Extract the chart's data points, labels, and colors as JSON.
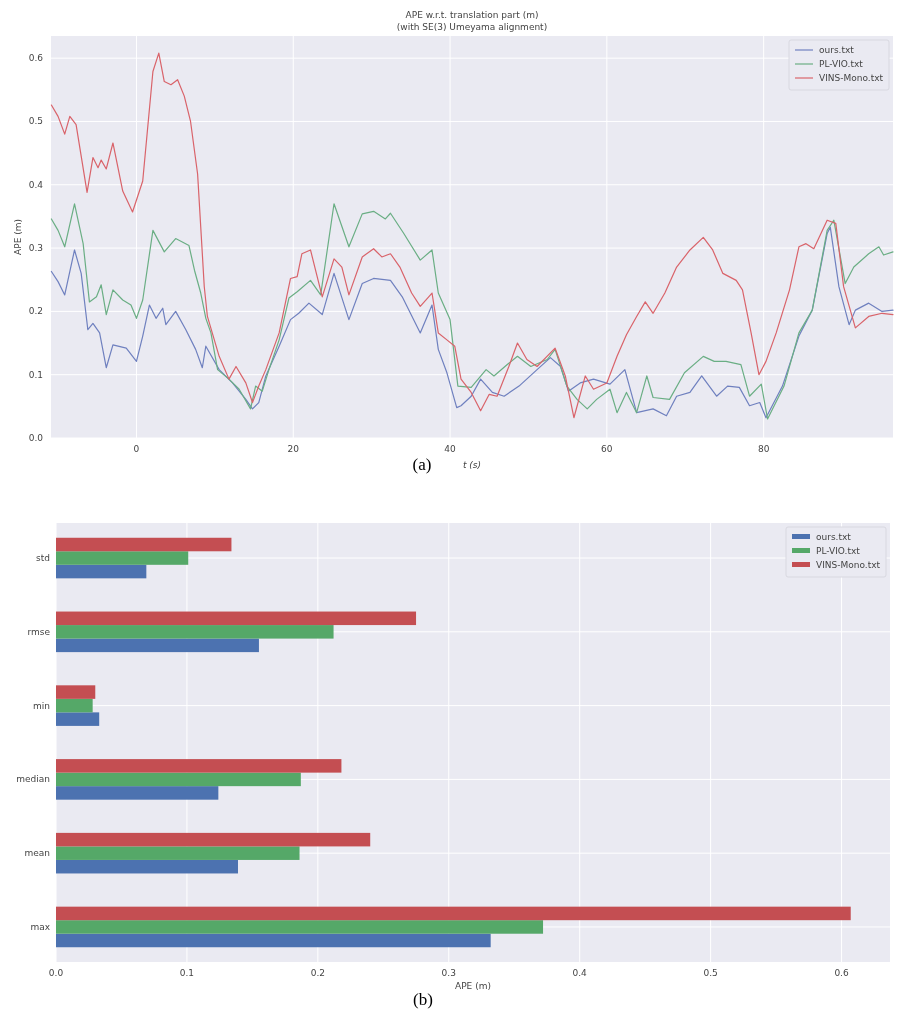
{
  "chart_data": [
    {
      "type": "line",
      "title": "APE w.r.t. translation part (m)",
      "subtitle": "(with SE(3) Umeyama alignment)",
      "xlabel": "t (s)",
      "ylabel": "APE (m)",
      "xlim": [
        -10.9,
        96.5
      ],
      "ylim": [
        0,
        0.635
      ],
      "xticks": [
        0,
        20,
        40,
        60,
        80
      ],
      "yticks": [
        {
          "value": 0,
          "label": "0.0"
        },
        0.1,
        0.2,
        0.3,
        0.4,
        0.5,
        0.6
      ],
      "grid": true,
      "legend": "top right",
      "annotations": [
        "(a)"
      ],
      "series": [
        {
          "name": "ours.txt",
          "color": "#6f80bf",
          "x": [
            -10.85,
            -10,
            -9.15,
            -7.9,
            -7.05,
            -6.2,
            -5.55,
            -4.7,
            -3.85,
            -3,
            -1.3,
            0,
            0.8,
            1.65,
            2.5,
            3.35,
            3.75,
            5,
            6.3,
            7.55,
            8.4,
            8.85,
            10.55,
            12.25,
            13.95,
            14.8,
            15.6,
            16.5,
            18.2,
            19.65,
            20.7,
            22,
            23.7,
            25.2,
            27.1,
            28.8,
            30.25,
            32.4,
            33.9,
            36.2,
            37.7,
            38.5,
            39.6,
            40.85,
            41.4,
            42.7,
            43.9,
            45.4,
            46.9,
            48.8,
            51.1,
            52.8,
            54.1,
            55.1,
            56.6,
            58.3,
            60.4,
            62.3,
            63.8,
            65.9,
            67.6,
            68.9,
            70.6,
            72.1,
            74,
            75.4,
            76.9,
            78.2,
            79.5,
            80.3,
            82.4,
            84.5,
            86.2,
            88.1,
            88.5,
            89.6,
            90.9,
            91.7,
            93.4,
            95.1,
            96.5
          ],
          "values": [
            0.263,
            0.247,
            0.226,
            0.297,
            0.26,
            0.171,
            0.181,
            0.166,
            0.111,
            0.147,
            0.142,
            0.121,
            0.161,
            0.21,
            0.189,
            0.205,
            0.179,
            0.2,
            0.171,
            0.14,
            0.111,
            0.145,
            0.108,
            0.087,
            0.061,
            0.046,
            0.056,
            0.098,
            0.145,
            0.187,
            0.197,
            0.213,
            0.195,
            0.26,
            0.187,
            0.244,
            0.252,
            0.249,
            0.223,
            0.166,
            0.21,
            0.14,
            0.103,
            0.048,
            0.051,
            0.066,
            0.093,
            0.072,
            0.066,
            0.082,
            0.108,
            0.127,
            0.113,
            0.074,
            0.087,
            0.093,
            0.085,
            0.108,
            0.04,
            0.046,
            0.035,
            0.066,
            0.072,
            0.098,
            0.066,
            0.082,
            0.08,
            0.051,
            0.056,
            0.032,
            0.082,
            0.161,
            0.202,
            0.323,
            0.333,
            0.239,
            0.179,
            0.202,
            0.213,
            0.2,
            0.202
          ]
        },
        {
          "name": "PL-VIO.txt",
          "color": "#6aae84",
          "x": [
            -10.85,
            -10,
            -9.15,
            -7.9,
            -6.8,
            -6,
            -5.1,
            -4.5,
            -3.85,
            -3,
            -1.75,
            -0.7,
            0,
            0.8,
            2.1,
            3.55,
            5,
            6.7,
            7.4,
            8.2,
            8.85,
            9.5,
            10.35,
            11.8,
            13.1,
            14.55,
            15.2,
            16.05,
            16.9,
            18.2,
            19.45,
            20.5,
            22.2,
            23.5,
            25.2,
            27.1,
            28.8,
            30.25,
            31.75,
            32.4,
            34.1,
            36.2,
            37.7,
            38.5,
            40,
            41,
            42.7,
            44.6,
            45.6,
            47.3,
            48.6,
            50.3,
            52.4,
            53.4,
            54.9,
            56.2,
            57.5,
            58.7,
            60.4,
            61.3,
            62.5,
            63.8,
            65.1,
            65.9,
            68,
            69.9,
            72.3,
            73.7,
            75.2,
            77.1,
            78.2,
            79.7,
            80.5,
            82.6,
            84.5,
            86.2,
            88.1,
            88.95,
            90.4,
            91.5,
            93.4,
            94.7,
            95.3,
            96.5
          ],
          "values": [
            0.346,
            0.328,
            0.302,
            0.37,
            0.307,
            0.215,
            0.223,
            0.242,
            0.195,
            0.234,
            0.218,
            0.21,
            0.189,
            0.218,
            0.328,
            0.294,
            0.315,
            0.304,
            0.265,
            0.229,
            0.189,
            0.166,
            0.108,
            0.093,
            0.077,
            0.046,
            0.082,
            0.074,
            0.108,
            0.155,
            0.221,
            0.231,
            0.249,
            0.226,
            0.37,
            0.302,
            0.354,
            0.358,
            0.346,
            0.355,
            0.323,
            0.281,
            0.297,
            0.229,
            0.187,
            0.082,
            0.08,
            0.108,
            0.098,
            0.116,
            0.129,
            0.113,
            0.124,
            0.14,
            0.082,
            0.061,
            0.046,
            0.061,
            0.077,
            0.04,
            0.072,
            0.04,
            0.098,
            0.064,
            0.061,
            0.103,
            0.129,
            0.121,
            0.121,
            0.116,
            0.066,
            0.085,
            0.03,
            0.082,
            0.166,
            0.202,
            0.328,
            0.344,
            0.244,
            0.27,
            0.291,
            0.302,
            0.289,
            0.294
          ]
        },
        {
          "name": "VINS-Mono.txt",
          "color": "#d9636a",
          "x": [
            -10.85,
            -10,
            -9.15,
            -8.5,
            -7.7,
            -6.3,
            -5.55,
            -4.9,
            -4.5,
            -3.85,
            -3,
            -1.75,
            -0.5,
            0.8,
            2.1,
            2.85,
            3.55,
            4.4,
            5.25,
            6.1,
            6.9,
            7.8,
            8.65,
            9.05,
            10.55,
            11.8,
            12.7,
            13.95,
            14.8,
            15.6,
            16.5,
            18.2,
            19.65,
            20.5,
            21.1,
            22.2,
            23.7,
            25.2,
            26.2,
            27.1,
            28.8,
            30.25,
            31.3,
            32.4,
            33.6,
            35.1,
            36.2,
            37.7,
            38.5,
            39.6,
            40.6,
            41.4,
            42.7,
            43.9,
            45,
            46,
            47.5,
            48.6,
            49.8,
            51.1,
            53.4,
            54.7,
            55.8,
            57.25,
            58.3,
            60,
            61.3,
            62.5,
            63.8,
            64.9,
            65.9,
            67.4,
            68.9,
            70.6,
            72.3,
            73.5,
            74.8,
            76.5,
            77.3,
            78.4,
            79.4,
            80.3,
            81.6,
            83.3,
            84.5,
            85.4,
            86.4,
            88.1,
            89.2,
            90.2,
            91.7,
            93.4,
            95.1,
            96.5
          ],
          "values": [
            0.526,
            0.508,
            0.48,
            0.508,
            0.495,
            0.388,
            0.443,
            0.427,
            0.439,
            0.425,
            0.466,
            0.39,
            0.357,
            0.406,
            0.579,
            0.608,
            0.563,
            0.558,
            0.566,
            0.54,
            0.5,
            0.417,
            0.239,
            0.192,
            0.129,
            0.093,
            0.113,
            0.087,
            0.056,
            0.082,
            0.108,
            0.166,
            0.252,
            0.255,
            0.291,
            0.297,
            0.223,
            0.283,
            0.27,
            0.226,
            0.286,
            0.299,
            0.286,
            0.291,
            0.27,
            0.229,
            0.208,
            0.229,
            0.166,
            0.155,
            0.145,
            0.093,
            0.072,
            0.043,
            0.069,
            0.066,
            0.113,
            0.15,
            0.124,
            0.113,
            0.142,
            0.098,
            0.032,
            0.098,
            0.077,
            0.087,
            0.129,
            0.163,
            0.192,
            0.215,
            0.197,
            0.229,
            0.27,
            0.297,
            0.317,
            0.297,
            0.26,
            0.249,
            0.234,
            0.166,
            0.1,
            0.121,
            0.166,
            0.234,
            0.302,
            0.307,
            0.299,
            0.344,
            0.339,
            0.239,
            0.174,
            0.192,
            0.197,
            0.195
          ]
        }
      ]
    },
    {
      "type": "bar",
      "orientation": "horizontal",
      "xlabel": "APE (m)",
      "categories": [
        "std",
        "rmse",
        "min",
        "median",
        "mean",
        "max"
      ],
      "xlim": [
        0,
        0.637
      ],
      "xticks": [
        {
          "value": 0,
          "label": "0.0"
        },
        0.1,
        0.2,
        0.3,
        0.4,
        0.5,
        0.6
      ],
      "grid": true,
      "legend": "top right",
      "annotations": [
        "(b)"
      ],
      "series": [
        {
          "name": "ours.txt",
          "color": "#4c72b0",
          "values": [
            0.069,
            0.155,
            0.033,
            0.124,
            0.139,
            0.332
          ]
        },
        {
          "name": "PL-VIO.txt",
          "color": "#55a868",
          "values": [
            0.101,
            0.212,
            0.028,
            0.187,
            0.186,
            0.372
          ]
        },
        {
          "name": "VINS-Mono.txt",
          "color": "#c44e52",
          "values": [
            0.134,
            0.275,
            0.03,
            0.218,
            0.24,
            0.607
          ]
        }
      ]
    }
  ]
}
